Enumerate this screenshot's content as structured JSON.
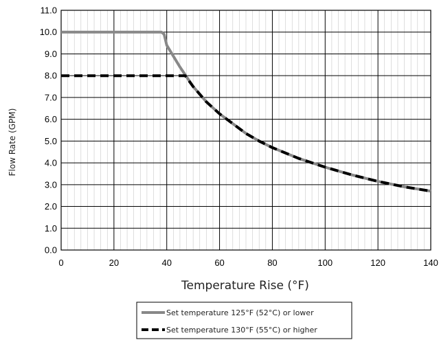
{
  "chart_data": {
    "type": "line",
    "xlabel": "Temperature Rise (°F)",
    "ylabel": "Flow Rate (GPM)",
    "xlim": [
      0,
      140
    ],
    "ylim": [
      0,
      11
    ],
    "x_ticks": [
      "0",
      "20",
      "40",
      "60",
      "80",
      "100",
      "120",
      "140"
    ],
    "y_ticks": [
      "0.0",
      "1.0",
      "2.0",
      "3.0",
      "4.0",
      "5.0",
      "6.0",
      "7.0",
      "8.0",
      "9.0",
      "10.0",
      "11.0"
    ],
    "grid": true,
    "legend_position": "bottom-center",
    "series": [
      {
        "name": "Set temperature 125°F (52°C) or lower",
        "color": "#888888",
        "style": "solid",
        "x": [
          0,
          38,
          39,
          40,
          45,
          50,
          55,
          60,
          65,
          70,
          75,
          80,
          90,
          100,
          110,
          120,
          130,
          140
        ],
        "y": [
          10.0,
          10.0,
          9.9,
          9.4,
          8.4,
          7.5,
          6.8,
          6.25,
          5.8,
          5.35,
          5.0,
          4.7,
          4.2,
          3.8,
          3.45,
          3.15,
          2.9,
          2.7
        ]
      },
      {
        "name": "Set temperature 130°F (55°C) or higher",
        "color": "#000000",
        "style": "dashed",
        "x": [
          0,
          47,
          50,
          55,
          60,
          65,
          70,
          75,
          80,
          90,
          100,
          110,
          120,
          130,
          140
        ],
        "y": [
          8.0,
          8.0,
          7.5,
          6.8,
          6.25,
          5.8,
          5.35,
          5.0,
          4.7,
          4.2,
          3.8,
          3.45,
          3.15,
          2.9,
          2.7
        ]
      }
    ]
  }
}
